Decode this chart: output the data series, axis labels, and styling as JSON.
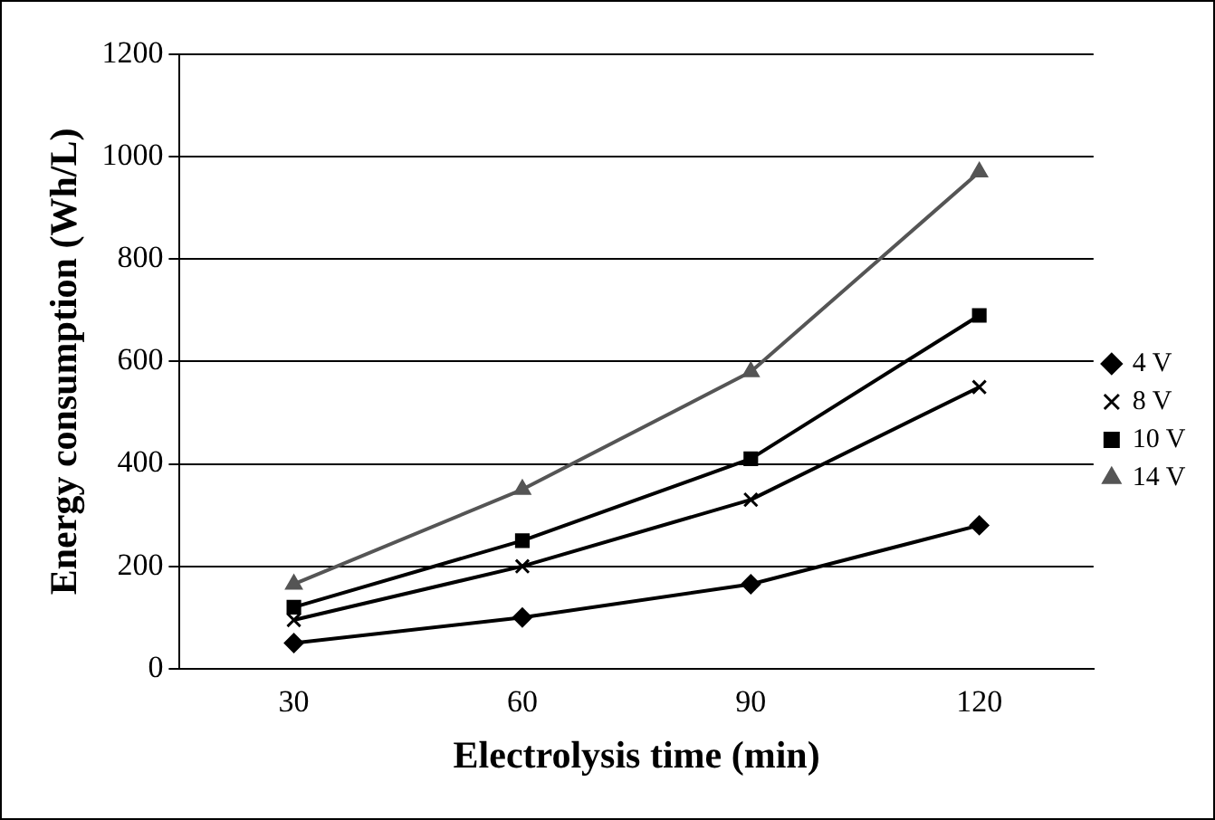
{
  "chart_data": {
    "type": "line",
    "xlabel": "Electrolysis time (min)",
    "ylabel": "Energy consumption (Wh/L)",
    "categories": [
      "30",
      "60",
      "90",
      "120"
    ],
    "series": [
      {
        "name": "4 V",
        "color": "#000000",
        "marker": "diamond",
        "values": [
          50,
          100,
          165,
          280
        ]
      },
      {
        "name": "8 V",
        "color": "#000000",
        "marker": "cross",
        "values": [
          95,
          200,
          330,
          550
        ]
      },
      {
        "name": "10 V",
        "color": "#000000",
        "marker": "square",
        "values": [
          120,
          250,
          410,
          690
        ]
      },
      {
        "name": "14 V",
        "color": "#555555",
        "marker": "triangle",
        "values": [
          165,
          350,
          580,
          970
        ]
      }
    ],
    "ylim": [
      0,
      1200
    ],
    "yticks": [
      0,
      200,
      400,
      600,
      800,
      1000,
      1200
    ],
    "grid": "y",
    "legend": "right",
    "line_style": "solid"
  }
}
